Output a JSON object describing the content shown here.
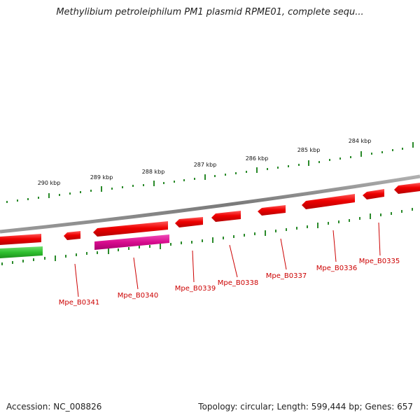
{
  "title": "Methylibium petroleiphilum PM1 plasmid RPME01, complete sequ...",
  "footer": {
    "accession": "Accession: NC_008826",
    "summary": "Topology: circular; Length: 599,444 bp; Genes: 657"
  },
  "colors": {
    "backbone": "#808080",
    "tick": "#2a8a2a",
    "gene_red": "#ee0000",
    "gene_pink": "#e0109a",
    "gene_green": "#2fbf2f",
    "label": "#cc0000"
  },
  "kbp_labels": [
    "290 kbp",
    "289 kbp",
    "288 kbp",
    "287 kbp",
    "286 kbp",
    "285 kbp",
    "284 kbp"
  ],
  "gene_labels": [
    "Mpe_B0341",
    "Mpe_B0340",
    "Mpe_B0339",
    "Mpe_B0338",
    "Mpe_B0337",
    "Mpe_B0336",
    "Mpe_B0335"
  ]
}
